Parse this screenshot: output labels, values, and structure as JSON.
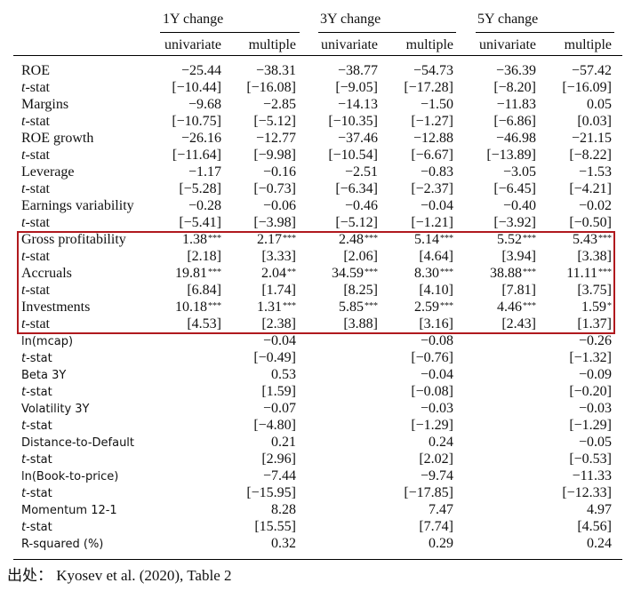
{
  "header": {
    "groups": [
      "1Y change",
      "3Y change",
      "5Y change"
    ],
    "columns": [
      "univariate",
      "multiple",
      "univariate",
      "multiple",
      "univariate",
      "multiple"
    ]
  },
  "colors": {
    "highlight": "#b0191e"
  },
  "rows": [
    {
      "label": "ROE",
      "cells": [
        "−25.44",
        "−38.31",
        "−38.77",
        "−54.73",
        "−36.39",
        "−57.42"
      ]
    },
    {
      "label": "t-stat",
      "cells": [
        "[−10.44]",
        "[−16.08]",
        "[−9.05]",
        "[−17.28]",
        "[−8.20]",
        "[−16.09]"
      ]
    },
    {
      "label": "Margins",
      "cells": [
        "−9.68",
        "−2.85",
        "−14.13",
        "−1.50",
        "−11.83",
        "0.05"
      ]
    },
    {
      "label": "t-stat",
      "cells": [
        "[−10.75]",
        "[−5.12]",
        "[−10.35]",
        "[−1.27]",
        "[−6.86]",
        "[0.03]"
      ]
    },
    {
      "label": "ROE growth",
      "cells": [
        "−26.16",
        "−12.77",
        "−37.46",
        "−12.88",
        "−46.98",
        "−21.15"
      ]
    },
    {
      "label": "t-stat",
      "cells": [
        "[−11.64]",
        "[−9.98]",
        "[−10.54]",
        "[−6.67]",
        "[−13.89]",
        "[−8.22]"
      ]
    },
    {
      "label": "Leverage",
      "cells": [
        "−1.17",
        "−0.16",
        "−2.51",
        "−0.83",
        "−3.05",
        "−1.53"
      ]
    },
    {
      "label": "t-stat",
      "cells": [
        "[−5.28]",
        "[−0.73]",
        "[−6.34]",
        "[−2.37]",
        "[−6.45]",
        "[−4.21]"
      ]
    },
    {
      "label": "Earnings variability",
      "cells": [
        "−0.28",
        "−0.06",
        "−0.46",
        "−0.04",
        "−0.40",
        "−0.02"
      ]
    },
    {
      "label": "t-stat",
      "cells": [
        "[−5.41]",
        "[−3.98]",
        "[−5.12]",
        "[−1.21]",
        "[−3.92]",
        "[−0.50]"
      ]
    },
    {
      "label": "Gross profitability",
      "cells": [
        "1.38",
        "2.17",
        "2.48",
        "5.14",
        "5.52",
        "5.43"
      ],
      "stars": [
        "***",
        "***",
        "***",
        "***",
        "***",
        "***"
      ],
      "highlighted": true
    },
    {
      "label": "t-stat",
      "cells": [
        "[2.18]",
        "[3.33]",
        "[2.06]",
        "[4.64]",
        "[3.94]",
        "[3.38]"
      ],
      "highlighted": true
    },
    {
      "label": "Accruals",
      "cells": [
        "19.81",
        "2.04",
        "34.59",
        "8.30",
        "38.88",
        "11.11"
      ],
      "stars": [
        "***",
        "**",
        "***",
        "***",
        "***",
        "***"
      ],
      "highlighted": true
    },
    {
      "label": "t-stat",
      "cells": [
        "[6.84]",
        "[1.74]",
        "[8.25]",
        "[4.10]",
        "[7.81]",
        "[3.75]"
      ],
      "highlighted": true
    },
    {
      "label": "Investments",
      "cells": [
        "10.18",
        "1.31",
        "5.85",
        "2.59",
        "4.46",
        "1.59"
      ],
      "stars": [
        "***",
        "***",
        "***",
        "***",
        "***",
        "*"
      ],
      "highlighted": true
    },
    {
      "label": "t-stat",
      "cells": [
        "[4.53]",
        "[2.38]",
        "[3.88]",
        "[3.16]",
        "[2.43]",
        "[1.37]"
      ],
      "highlighted": true
    },
    {
      "label": "ln(mcap)",
      "cells": [
        "",
        "−0.04",
        "",
        "−0.08",
        "",
        "−0.26"
      ]
    },
    {
      "label": "t-stat",
      "cells": [
        "",
        "[−0.49]",
        "",
        "[−0.76]",
        "",
        "[−1.32]"
      ]
    },
    {
      "label": "Beta 3Y",
      "cells": [
        "",
        "0.53",
        "",
        "−0.04",
        "",
        "−0.09"
      ]
    },
    {
      "label": "t-stat",
      "cells": [
        "",
        "[1.59]",
        "",
        "[−0.08]",
        "",
        "[−0.20]"
      ]
    },
    {
      "label": "Volatility 3Y",
      "cells": [
        "",
        "−0.07",
        "",
        "−0.03",
        "",
        "−0.03"
      ]
    },
    {
      "label": "t-stat",
      "cells": [
        "",
        "[−4.80]",
        "",
        "[−1.29]",
        "",
        "[−1.29]"
      ]
    },
    {
      "label": "Distance-to-Default",
      "cells": [
        "",
        "0.21",
        "",
        "0.24",
        "",
        "−0.05"
      ]
    },
    {
      "label": "t-stat",
      "cells": [
        "",
        "[2.96]",
        "",
        "[2.02]",
        "",
        "[−0.53]"
      ]
    },
    {
      "label": "ln(Book-to-price)",
      "cells": [
        "",
        "−7.44",
        "",
        "−9.74",
        "",
        "−11.33"
      ]
    },
    {
      "label": "t-stat",
      "cells": [
        "",
        "[−15.95]",
        "",
        "[−17.85]",
        "",
        "[−12.33]"
      ]
    },
    {
      "label": "Momentum 12-1",
      "cells": [
        "",
        "8.28",
        "",
        "7.47",
        "",
        "4.97"
      ]
    },
    {
      "label": "t-stat",
      "cells": [
        "",
        "[15.55]",
        "",
        "[7.74]",
        "",
        "[4.56]"
      ]
    },
    {
      "label": "R-squared (%)",
      "cells": [
        "",
        "0.32",
        "",
        "0.29",
        "",
        "0.24"
      ]
    }
  ],
  "source": "出处： Kyosev et al. (2020), Table 2"
}
